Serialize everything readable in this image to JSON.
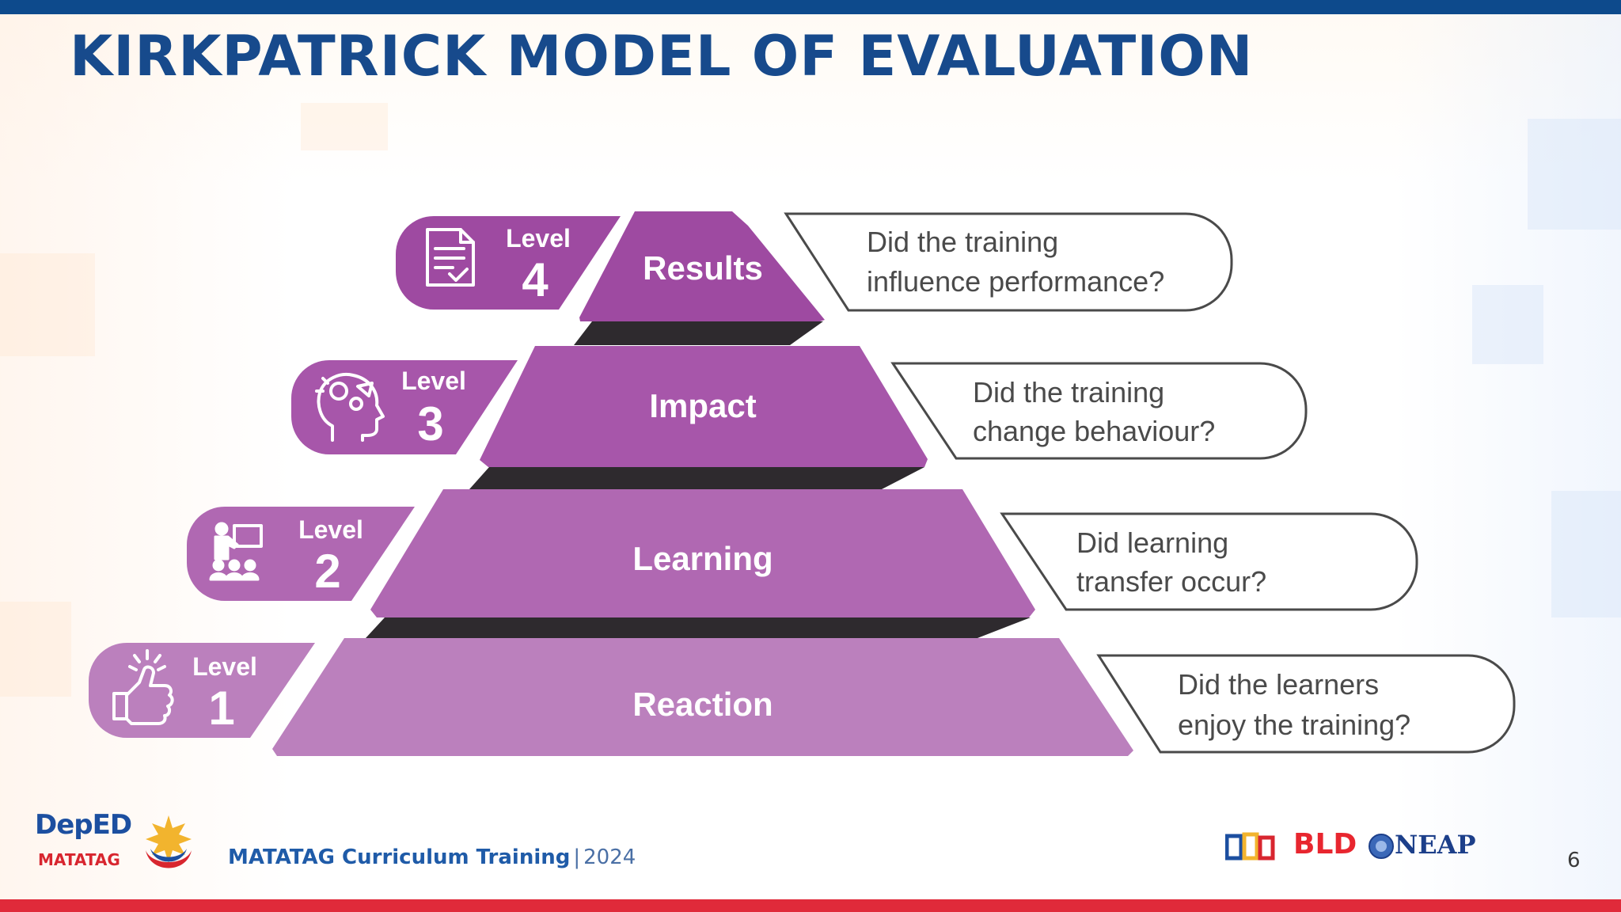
{
  "slide": {
    "title": "KIRKPATRICK MODEL OF EVALUATION",
    "page_number": "6"
  },
  "colors": {
    "top_bar": "#0d4a8c",
    "bottom_bar": "#e02a3a",
    "title": "#174a8c",
    "tier_4": "#9e4aa1",
    "tier_3": "#a756aa",
    "tier_2": "#b068b2",
    "tier_1": "#bb80bd",
    "outline": "#4a4a4a"
  },
  "pyramid": {
    "levels": [
      {
        "level_word": "Level",
        "level_number": "4",
        "name": "Results",
        "question_line1": "Did the training",
        "question_line2": "influence performance?",
        "icon": "document-checklist-icon"
      },
      {
        "level_word": "Level",
        "level_number": "3",
        "name": "Impact",
        "question_line1": "Did the training",
        "question_line2": "change behaviour?",
        "icon": "head-gears-icon"
      },
      {
        "level_word": "Level",
        "level_number": "2",
        "name": "Learning",
        "question_line1": "Did learning",
        "question_line2": "transfer occur?",
        "icon": "classroom-presentation-icon"
      },
      {
        "level_word": "Level",
        "level_number": "1",
        "name": "Reaction",
        "question_line1": "Did the learners",
        "question_line2": "enjoy the training?",
        "icon": "thumbs-up-icon"
      }
    ]
  },
  "footer": {
    "program": "MATATAG Curriculum Training",
    "separator": "|",
    "year": "2024",
    "logos": {
      "deped": "DepED",
      "matatag": "MATATAG",
      "bld": "BLD",
      "neap": "NEAP"
    }
  }
}
